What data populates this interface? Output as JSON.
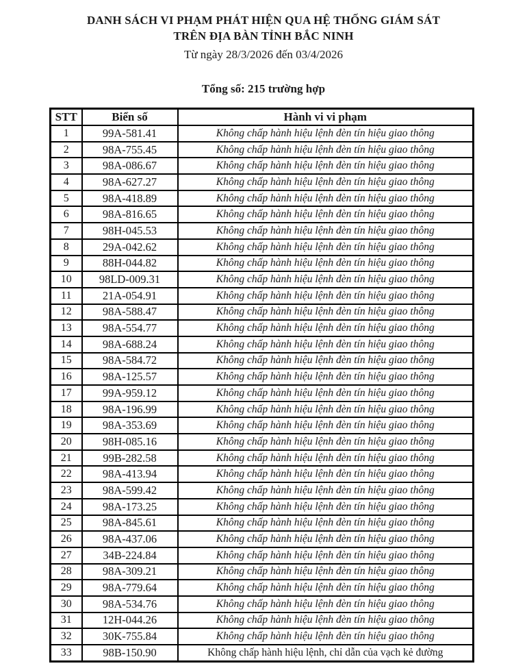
{
  "document": {
    "title_line1": "DANH SÁCH VI PHẠM PHÁT HIỆN QUA HỆ THỐNG GIÁM SÁT",
    "title_line2": "TRÊN ĐỊA BÀN TỈNH BẮC NINH",
    "date_range": "Từ ngày 28/3/2026 đến 03/4/2026",
    "total": "Tổng số: 215 trường hợp"
  },
  "table": {
    "headers": [
      "STT",
      "Biển số",
      "Hành vi vi phạm"
    ],
    "rows": [
      {
        "stt": "1",
        "plate": "99A-581.41",
        "violation": "Không chấp hành hiệu lệnh đèn tín hiệu giao thông",
        "italic": true
      },
      {
        "stt": "2",
        "plate": "98A-755.45",
        "violation": "Không chấp hành hiệu lệnh đèn tín hiệu giao thông",
        "italic": true
      },
      {
        "stt": "3",
        "plate": "98A-086.67",
        "violation": "Không chấp hành hiệu lệnh đèn tín hiệu giao thông",
        "italic": true
      },
      {
        "stt": "4",
        "plate": "98A-627.27",
        "violation": "Không chấp hành hiệu lệnh đèn tín hiệu giao thông",
        "italic": true
      },
      {
        "stt": "5",
        "plate": "98A-418.89",
        "violation": "Không chấp hành hiệu lệnh đèn tín hiệu giao thông",
        "italic": true
      },
      {
        "stt": "6",
        "plate": "98A-816.65",
        "violation": "Không chấp hành hiệu lệnh đèn tín hiệu giao thông",
        "italic": true
      },
      {
        "stt": "7",
        "plate": "98H-045.53",
        "violation": "Không chấp hành hiệu lệnh đèn tín hiệu giao thông",
        "italic": true
      },
      {
        "stt": "8",
        "plate": "29A-042.62",
        "violation": "Không chấp hành hiệu lệnh đèn tín hiệu giao thông",
        "italic": true
      },
      {
        "stt": "9",
        "plate": "88H-044.82",
        "violation": "Không chấp hành hiệu lệnh đèn tín hiệu giao thông",
        "italic": true
      },
      {
        "stt": "10",
        "plate": "98LD-009.31",
        "violation": "Không chấp hành hiệu lệnh đèn tín hiệu giao thông",
        "italic": true
      },
      {
        "stt": "11",
        "plate": "21A-054.91",
        "violation": "Không chấp hành hiệu lệnh đèn tín hiệu giao thông",
        "italic": true
      },
      {
        "stt": "12",
        "plate": "98A-588.47",
        "violation": "Không chấp hành hiệu lệnh đèn tín hiệu giao thông",
        "italic": true
      },
      {
        "stt": "13",
        "plate": "98A-554.77",
        "violation": "Không chấp hành hiệu lệnh đèn tín hiệu giao thông",
        "italic": true
      },
      {
        "stt": "14",
        "plate": "98A-688.24",
        "violation": "Không chấp hành hiệu lệnh đèn tín hiệu giao thông",
        "italic": true
      },
      {
        "stt": "15",
        "plate": "98A-584.72",
        "violation": "Không chấp hành hiệu lệnh đèn tín hiệu giao thông",
        "italic": true
      },
      {
        "stt": "16",
        "plate": "98A-125.57",
        "violation": "Không chấp hành hiệu lệnh đèn tín hiệu giao thông",
        "italic": true
      },
      {
        "stt": "17",
        "plate": "99A-959.12",
        "violation": "Không chấp hành hiệu lệnh đèn tín hiệu giao thông",
        "italic": true
      },
      {
        "stt": "18",
        "plate": "98A-196.99",
        "violation": "Không chấp hành hiệu lệnh đèn tín hiệu giao thông",
        "italic": true
      },
      {
        "stt": "19",
        "plate": "98A-353.69",
        "violation": "Không chấp hành hiệu lệnh đèn tín hiệu giao thông",
        "italic": true
      },
      {
        "stt": "20",
        "plate": "98H-085.16",
        "violation": "Không chấp hành hiệu lệnh đèn tín hiệu giao thông",
        "italic": true
      },
      {
        "stt": "21",
        "plate": "99B-282.58",
        "violation": "Không chấp hành hiệu lệnh đèn tín hiệu giao thông",
        "italic": true
      },
      {
        "stt": "22",
        "plate": "98A-413.94",
        "violation": "Không chấp hành hiệu lệnh đèn tín hiệu giao thông",
        "italic": true
      },
      {
        "stt": "23",
        "plate": "98A-599.42",
        "violation": "Không chấp hành hiệu lệnh đèn tín hiệu giao thông",
        "italic": true
      },
      {
        "stt": "24",
        "plate": "98A-173.25",
        "violation": "Không chấp hành hiệu lệnh đèn tín hiệu giao thông",
        "italic": true
      },
      {
        "stt": "25",
        "plate": "98A-845.61",
        "violation": "Không chấp hành hiệu lệnh đèn tín hiệu giao thông",
        "italic": true
      },
      {
        "stt": "26",
        "plate": "98A-437.06",
        "violation": "Không chấp hành hiệu lệnh đèn tín hiệu giao thông",
        "italic": true
      },
      {
        "stt": "27",
        "plate": "34B-224.84",
        "violation": "Không chấp hành hiệu lệnh đèn tín hiệu giao thông",
        "italic": true
      },
      {
        "stt": "28",
        "plate": "98A-309.21",
        "violation": "Không chấp hành hiệu lệnh đèn tín hiệu giao thông",
        "italic": true
      },
      {
        "stt": "29",
        "plate": "98A-779.64",
        "violation": "Không chấp hành hiệu lệnh đèn tín hiệu giao thông",
        "italic": true
      },
      {
        "stt": "30",
        "plate": "98A-534.76",
        "violation": "Không chấp hành hiệu lệnh đèn tín hiệu giao thông",
        "italic": true
      },
      {
        "stt": "31",
        "plate": "12H-044.26",
        "violation": "Không chấp hành hiệu lệnh đèn tín hiệu giao thông",
        "italic": true
      },
      {
        "stt": "32",
        "plate": "30K-755.84",
        "violation": "Không chấp hành hiệu lệnh đèn tín hiệu giao thông",
        "italic": true
      },
      {
        "stt": "33",
        "plate": "98B-150.90",
        "violation": "Không chấp hành hiệu lệnh, chỉ dẫn của vạch kẻ đường",
        "italic": false
      }
    ]
  }
}
